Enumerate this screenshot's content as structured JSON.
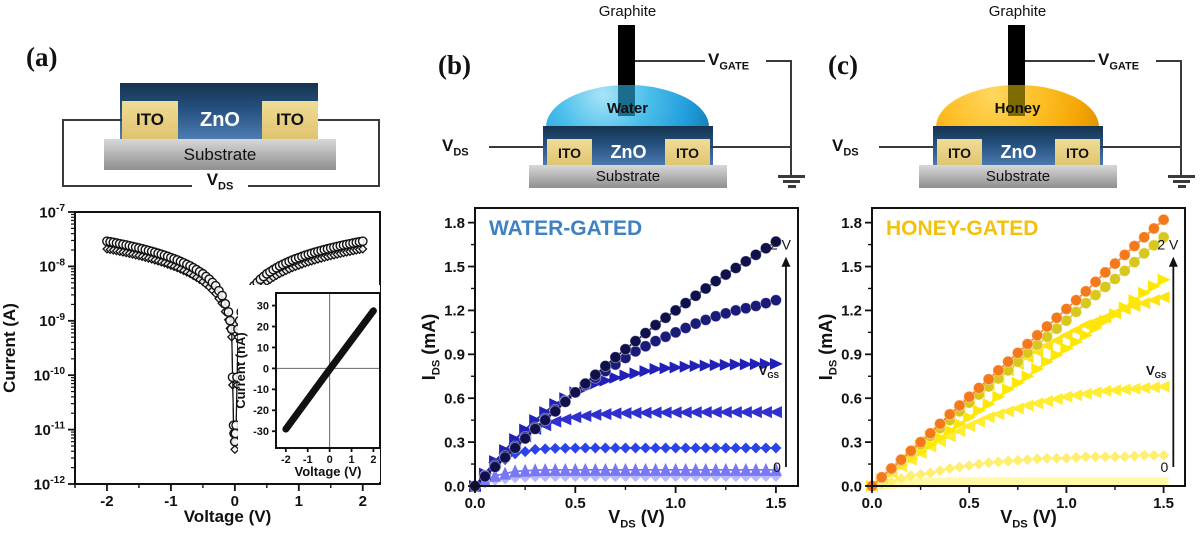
{
  "figure": {
    "panel_a": {
      "label": "(a)",
      "schematic": {
        "zno": "ZnO",
        "ito_left": "ITO",
        "ito_right": "ITO",
        "substrate": "Substrate",
        "vds_main": "V",
        "vds_sub": "DS"
      }
    },
    "panel_b": {
      "label": "(b)",
      "schematic": {
        "graphite": "Graphite",
        "liquid": "Water",
        "zno": "ZnO",
        "ito_left": "ITO",
        "ito_right": "ITO",
        "substrate": "Substrate",
        "vds_main": "V",
        "vds_sub": "DS",
        "vgate_main": "V",
        "vgate_sub": "GATE"
      }
    },
    "panel_c": {
      "label": "(c)",
      "schematic": {
        "graphite": "Graphite",
        "liquid": "Honey",
        "zno": "ZnO",
        "ito_left": "ITO",
        "ito_right": "ITO",
        "substrate": "Substrate",
        "vds_main": "V",
        "vds_sub": "DS",
        "vgate_main": "V",
        "vgate_sub": "GATE"
      }
    },
    "colors": {
      "zno_blue": "#24507e",
      "ito_tan": "#ecd488",
      "water_droplet": "#29a9e1",
      "honey_droplet": "#f5a800",
      "water_title": "#3f81c1",
      "honey_title": "#f2c10e"
    }
  },
  "chart_data": [
    {
      "id": "a_main",
      "type": "scatter",
      "xlabel": "Voltage (V)",
      "ylabel": "Current (A)",
      "x_range": [
        -2.5,
        2.27
      ],
      "y_scale": "log",
      "y_range": [
        1e-12,
        1e-07
      ],
      "x_ticks": [
        {
          "v": -2,
          "label": "-2"
        },
        {
          "v": -1,
          "label": "-1"
        },
        {
          "v": 0,
          "label": "0"
        },
        {
          "v": 1,
          "label": "1"
        },
        {
          "v": 2,
          "label": "2"
        }
      ],
      "y_ticks": [
        {
          "v": 1e-07,
          "label": "10^-7"
        },
        {
          "v": 1e-08,
          "label": "10^-8"
        },
        {
          "v": 1e-09,
          "label": "10^-9"
        },
        {
          "v": 1e-10,
          "label": "10^-10"
        },
        {
          "v": 1e-11,
          "label": "10^-11"
        },
        {
          "v": 1e-12,
          "label": "10^-12"
        }
      ],
      "x_minor": 0.5,
      "grid": false,
      "legend": "none",
      "series": [
        {
          "name": "iv-sweep-branch-1",
          "marker": "open-circle",
          "color": "#111111",
          "width": 1.2,
          "r": 4.2,
          "x": [
            -2,
            -1.9,
            -1.8,
            -1.7,
            -1.6,
            -1.5,
            -1.4,
            -1.3,
            -1.2,
            -1.1,
            -1,
            -0.9,
            -0.8,
            -0.7,
            -0.6,
            -0.5,
            -0.4,
            -0.3,
            -0.2,
            -0.1,
            -0.05,
            -0.02,
            0,
            0.02,
            0.05,
            0.1,
            0.2,
            0.3,
            0.4,
            0.5,
            0.6,
            0.7,
            0.8,
            0.9,
            1,
            1.1,
            1.2,
            1.3,
            1.4,
            1.5,
            1.6,
            1.7,
            1.8,
            1.9,
            2
          ],
          "y": [
            2.9e-08,
            2.76e-08,
            2.61e-08,
            2.47e-08,
            2.32e-08,
            2.18e-08,
            2.03e-08,
            1.89e-08,
            1.74e-08,
            1.6e-08,
            1.45e-08,
            1.31e-08,
            1.16e-08,
            1.02e-08,
            8.7e-09,
            7.3e-09,
            5.8e-09,
            4.4e-09,
            2.9e-09,
            1.45e-09,
            7e-10,
            1.2e-11,
            6e-12,
            1.2e-11,
            7e-10,
            1.45e-09,
            2.9e-09,
            4.4e-09,
            5.8e-09,
            7.3e-09,
            8.7e-09,
            1.02e-08,
            1.16e-08,
            1.31e-08,
            1.45e-08,
            1.6e-08,
            1.74e-08,
            1.89e-08,
            2.03e-08,
            2.18e-08,
            2.32e-08,
            2.47e-08,
            2.61e-08,
            2.76e-08,
            2.9e-08
          ]
        },
        {
          "name": "iv-sweep-branch-2",
          "marker": "open-diamond",
          "color": "#111111",
          "width": 1.0,
          "r": 3.8,
          "base": 0,
          "factor": 0.72
        }
      ]
    },
    {
      "id": "a_inset",
      "type": "line",
      "xlabel": "Voltage (V)",
      "ylabel": "Current (nA)",
      "x_range": [
        -2.45,
        2.3
      ],
      "y_range": [
        -38,
        36
      ],
      "x_ticks": [
        {
          "v": -2,
          "label": "-2"
        },
        {
          "v": -1,
          "label": "-1"
        },
        {
          "v": 0,
          "label": "0"
        },
        {
          "v": 1,
          "label": "1"
        },
        {
          "v": 2,
          "label": "2"
        }
      ],
      "y_ticks": [
        {
          "v": 30,
          "label": "30"
        },
        {
          "v": 20,
          "label": "20"
        },
        {
          "v": 10,
          "label": "10"
        },
        {
          "v": 0,
          "label": "0"
        },
        {
          "v": -10,
          "label": "-10"
        },
        {
          "v": -20,
          "label": "-20"
        },
        {
          "v": -30,
          "label": "-30"
        }
      ],
      "x_minor": 0.5,
      "y_minor": 5,
      "crosshair": true,
      "bg": true,
      "legend": "none",
      "series": [
        {
          "name": "linear-iv-band",
          "marker": "none",
          "color": "#111111",
          "width": 7,
          "x": [
            -2,
            0,
            2
          ],
          "y": [
            -29,
            -0.5,
            27.5
          ]
        }
      ]
    },
    {
      "id": "water",
      "type": "line-scatter",
      "title": "WATER-GATED",
      "title_color": "#3f81c1",
      "xlabel": "V_{DS} (V)",
      "ylabel": "I_{DS} (mA)",
      "x_range": [
        0,
        1.61
      ],
      "y_range": [
        0,
        1.9
      ],
      "x_ticks": [
        {
          "v": 0,
          "label": "0.0"
        },
        {
          "v": 0.5,
          "label": "0.5"
        },
        {
          "v": 1,
          "label": "1.0"
        },
        {
          "v": 1.5,
          "label": "1.5"
        }
      ],
      "y_ticks": [
        {
          "v": 0,
          "label": "0.0"
        },
        {
          "v": 0.3,
          "label": "0.3"
        },
        {
          "v": 0.6,
          "label": "0.6"
        },
        {
          "v": 0.9,
          "label": "0.9"
        },
        {
          "v": 1.2,
          "label": "1.2"
        },
        {
          "v": 1.5,
          "label": "1.5"
        },
        {
          "v": 1.8,
          "label": "1.8"
        }
      ],
      "x_minor": 0.25,
      "y_minor": 0.15,
      "legend": "none",
      "x": [
        0,
        0.1,
        0.2,
        0.3,
        0.4,
        0.5,
        0.6,
        0.7,
        0.8,
        0.9,
        1.0,
        1.1,
        1.2,
        1.3,
        1.4,
        1.5
      ],
      "gate_arrow": {
        "x": 1.55,
        "y_bottom": 0.13,
        "y_top": 1.56,
        "mid_frac": 0.56,
        "top_label": "2 V",
        "mid_label": "V_{GS}",
        "bottom_label": "0"
      },
      "series": [
        {
          "name": "VGS highest (2 V)",
          "marker": "circle",
          "color": "#10104d",
          "r": 5.5,
          "values": [
            0,
            0.13,
            0.26,
            0.39,
            0.51,
            0.64,
            0.76,
            0.88,
            0.99,
            1.1,
            1.2,
            1.3,
            1.4,
            1.49,
            1.58,
            1.67
          ]
        },
        {
          "name": "VGS intermediate 5",
          "marker": "circle",
          "color": "#1a1a78",
          "r": 5.5,
          "values": [
            0,
            0.14,
            0.27,
            0.4,
            0.52,
            0.64,
            0.74,
            0.83,
            0.92,
            0.99,
            1.05,
            1.11,
            1.16,
            1.2,
            1.23,
            1.27
          ]
        },
        {
          "name": "VGS intermediate 4",
          "marker": "tri-right",
          "color": "#2121b8",
          "r": 6,
          "values": [
            0,
            0.17,
            0.32,
            0.45,
            0.56,
            0.64,
            0.7,
            0.74,
            0.77,
            0.8,
            0.81,
            0.82,
            0.826,
            0.83,
            0.833,
            0.835
          ]
        },
        {
          "name": "VGS intermediate 3",
          "marker": "tri-left",
          "color": "#3030cf",
          "r": 6,
          "values": [
            0,
            0.16,
            0.29,
            0.39,
            0.44,
            0.47,
            0.487,
            0.496,
            0.5,
            0.502,
            0.503,
            0.504,
            0.505,
            0.505,
            0.505,
            0.505
          ]
        },
        {
          "name": "VGS intermediate 2",
          "marker": "diamond",
          "color": "#2b43e8",
          "r": 5.5,
          "values": [
            0,
            0.14,
            0.22,
            0.25,
            0.257,
            0.259,
            0.26,
            0.26,
            0.26,
            0.26,
            0.26,
            0.26,
            0.26,
            0.26,
            0.26,
            0.26
          ]
        },
        {
          "name": "VGS intermediate 1",
          "marker": "tri-up",
          "color": "#7878f2",
          "r": 6,
          "values": [
            0,
            0.07,
            0.1,
            0.108,
            0.11,
            0.11,
            0.11,
            0.11,
            0.11,
            0.11,
            0.11,
            0.11,
            0.11,
            0.11,
            0.11,
            0.11
          ]
        },
        {
          "name": "VGS lowest (0)",
          "marker": "diamond",
          "color": "#b8b8fa",
          "r": 5.5,
          "values": [
            0,
            0.04,
            0.057,
            0.063,
            0.065,
            0.065,
            0.065,
            0.065,
            0.065,
            0.065,
            0.065,
            0.065,
            0.065,
            0.065,
            0.065,
            0.065
          ]
        }
      ]
    },
    {
      "id": "honey",
      "type": "line-scatter",
      "title": "HONEY-GATED",
      "title_color": "#f2c10e",
      "xlabel": "V_{DS} (V)",
      "ylabel": "I_{DS} (mA)",
      "x_range": [
        0,
        1.61
      ],
      "y_range": [
        0,
        1.9
      ],
      "x_ticks": [
        {
          "v": 0,
          "label": "0.0"
        },
        {
          "v": 0.5,
          "label": "0.5"
        },
        {
          "v": 1,
          "label": "1.0"
        },
        {
          "v": 1.5,
          "label": "1.5"
        }
      ],
      "y_ticks": [
        {
          "v": 0,
          "label": "0.0"
        },
        {
          "v": 0.3,
          "label": "0.3"
        },
        {
          "v": 0.6,
          "label": "0.6"
        },
        {
          "v": 0.9,
          "label": "0.9"
        },
        {
          "v": 1.2,
          "label": "1.2"
        },
        {
          "v": 1.5,
          "label": "1.5"
        },
        {
          "v": 1.8,
          "label": "1.8"
        }
      ],
      "x_minor": 0.25,
      "y_minor": 0.15,
      "legend": "none",
      "x": [
        0,
        0.1,
        0.2,
        0.3,
        0.4,
        0.5,
        0.6,
        0.7,
        0.8,
        0.9,
        1.0,
        1.1,
        1.2,
        1.3,
        1.4,
        1.5
      ],
      "gate_arrow": {
        "x": 1.55,
        "y_bottom": 0.13,
        "y_top": 1.56,
        "mid_frac": 0.56,
        "top_label": "2 V",
        "mid_label": "V_{GS}",
        "bottom_label": "0"
      },
      "series": [
        {
          "name": "VGS highest (2 V)",
          "marker": "circle",
          "color": "#f4791b",
          "r": 5.5,
          "values": [
            0,
            0.12,
            0.24,
            0.36,
            0.49,
            0.61,
            0.73,
            0.85,
            0.97,
            1.09,
            1.21,
            1.33,
            1.46,
            1.58,
            1.7,
            1.82
          ]
        },
        {
          "name": "VGS intermediate 5",
          "marker": "circle",
          "color": "#d8c81e",
          "r": 5.5,
          "values": [
            0,
            0.11,
            0.23,
            0.34,
            0.45,
            0.57,
            0.68,
            0.79,
            0.91,
            1.02,
            1.13,
            1.25,
            1.36,
            1.47,
            1.59,
            1.7
          ]
        },
        {
          "name": "VGS intermediate 4",
          "marker": "tri-right",
          "color": "#ffe800",
          "r": 6,
          "values": [
            0,
            0.09,
            0.19,
            0.28,
            0.38,
            0.47,
            0.56,
            0.66,
            0.75,
            0.85,
            0.94,
            1.03,
            1.13,
            1.22,
            1.32,
            1.41
          ]
        },
        {
          "name": "VGS intermediate 3",
          "marker": "tri-left",
          "color": "#ffe412",
          "r": 6,
          "values": [
            0,
            0.12,
            0.25,
            0.37,
            0.48,
            0.59,
            0.69,
            0.79,
            0.88,
            0.96,
            1.03,
            1.1,
            1.15,
            1.21,
            1.25,
            1.29
          ]
        },
        {
          "name": "VGS intermediate 2",
          "marker": "tri-left",
          "color": "#ffec33",
          "r": 6,
          "values": [
            0,
            0.09,
            0.18,
            0.27,
            0.34,
            0.41,
            0.47,
            0.51,
            0.55,
            0.58,
            0.61,
            0.63,
            0.65,
            0.66,
            0.67,
            0.68
          ]
        },
        {
          "name": "VGS intermediate 1",
          "marker": "diamond",
          "color": "#ffef70",
          "r": 5.5,
          "values": [
            0,
            0.03,
            0.07,
            0.09,
            0.12,
            0.14,
            0.16,
            0.17,
            0.18,
            0.19,
            0.19,
            0.2,
            0.2,
            0.2,
            0.21,
            0.21
          ]
        },
        {
          "name": "VGS lowest (0)",
          "marker": "square",
          "color": "#fff9a8",
          "r": 5,
          "values": [
            0,
            0.015,
            0.02,
            0.022,
            0.023,
            0.024,
            0.024,
            0.025,
            0.025,
            0.025,
            0.025,
            0.025,
            0.025,
            0.025,
            0.025,
            0.025
          ]
        }
      ]
    }
  ]
}
